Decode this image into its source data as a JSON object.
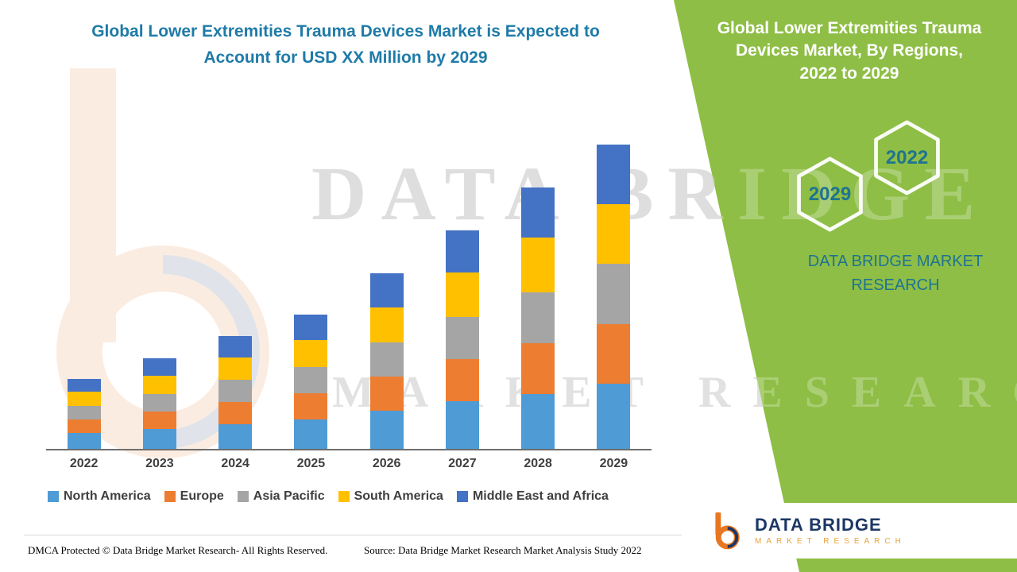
{
  "watermark": {
    "line1": "DATA BRIDGE",
    "line2": "MARKET RESEARCH"
  },
  "left_chart": {
    "title_lines": [
      "Global Lower Extremities Trauma Devices Market is Expected to",
      "Account for USD XX Million by 2029"
    ],
    "title_color": "#1F7BA8"
  },
  "chart_data": {
    "type": "bar",
    "stacked": true,
    "title": "Global Lower Extremities Trauma Devices Market is Expected to Account for USD XX Million by 2029",
    "xlabel": "",
    "ylabel": "",
    "y_axis_visible": false,
    "gridlines": false,
    "legend_position": "bottom",
    "value_note": "Y-axis values not shown in image (USD XX Million); segment values are relative estimates from bar heights",
    "categories": [
      "2022",
      "2023",
      "2024",
      "2025",
      "2026",
      "2027",
      "2028",
      "2029"
    ],
    "series": [
      {
        "name": "North America",
        "color": "#4E9BD5",
        "values": [
          20,
          25,
          31,
          37,
          48,
          60,
          69,
          82
        ]
      },
      {
        "name": "Europe",
        "color": "#ED7D31",
        "values": [
          17,
          22,
          28,
          33,
          43,
          53,
          64,
          75
        ]
      },
      {
        "name": "Asia Pacific",
        "color": "#A5A5A5",
        "values": [
          17,
          22,
          28,
          33,
          43,
          53,
          64,
          75
        ]
      },
      {
        "name": "South America",
        "color": "#FFC000",
        "values": [
          18,
          23,
          28,
          34,
          44,
          55,
          68,
          75
        ]
      },
      {
        "name": "Middle East and Africa",
        "color": "#4472C4",
        "values": [
          16,
          22,
          27,
          32,
          42,
          53,
          63,
          75
        ]
      }
    ]
  },
  "right_panel": {
    "title_lines": [
      "Global Lower Extremities Trauma",
      "Devices Market, By Regions,",
      "2022 to 2029"
    ],
    "hexagon_back_label": "2022",
    "hexagon_front_label": "2029",
    "brand_lines": [
      "DATA BRIDGE MARKET",
      "RESEARCH"
    ],
    "accent_green": "#8EBE45",
    "text_teal": "#1F7391"
  },
  "footer": {
    "dmca": "DMCA Protected © Data Bridge Market Research- All Rights Reserved.",
    "source": "Source: Data Bridge Market Research Market Analysis Study 2022"
  },
  "logo": {
    "name": "DATA BRIDGE",
    "subtitle": "MARKET RESEARCH"
  }
}
